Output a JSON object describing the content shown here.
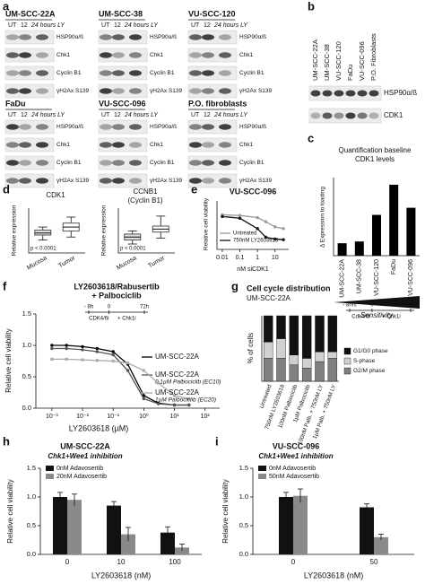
{
  "panel_a": {
    "letter": "a",
    "lanes": [
      "UT",
      "12",
      "24 hours LY"
    ],
    "markers": [
      "HSP90α/ß",
      "Chk1",
      "Cyclin B1",
      "γH2Ax S139"
    ],
    "blots": [
      "UM-SCC-22A",
      "UM-SCC-38",
      "VU-SCC-120",
      "FaDu",
      "VU-SCC-096",
      "P.O. fibroblasts"
    ]
  },
  "panel_b": {
    "letter": "b",
    "cell_lines": [
      "UM-SCC-22A",
      "UM-SCC-38",
      "VU-SCC-120",
      "FaDu",
      "VU-SCC-096",
      "P.O. Fibroblasts"
    ],
    "markers": [
      "HSP90α/ß",
      "CDK1"
    ]
  },
  "chart_data": [
    {
      "letter": "c",
      "type": "bar",
      "title": [
        "Quantification baseline",
        "CDK1 levels"
      ],
      "y_label": "Δ Expression to loading",
      "categories": [
        "UM-SCC-22A",
        "UM-SCC-38",
        "VU-SCC-120",
        "FaDu",
        "VU-SCC-096"
      ],
      "values": [
        0.35,
        0.4,
        1.15,
        2.0,
        1.35
      ],
      "color": "#000000",
      "ylim": [
        0,
        2.2
      ],
      "annotation": "Sensitivity"
    },
    {
      "letter": "d",
      "type": "box",
      "title": [
        "CDK1"
      ],
      "y_label": "Relative expression",
      "categories": [
        "Mucosa",
        "Tumor"
      ],
      "boxes": [
        {
          "min": -0.7,
          "q1": -0.2,
          "median": 0.0,
          "q3": 0.3,
          "max": 0.6
        },
        {
          "min": -0.4,
          "q1": 0.2,
          "median": 0.6,
          "q3": 1.0,
          "max": 1.6
        }
      ],
      "ylim": [
        -2,
        2.5
      ],
      "annotation": "p < 0.0001",
      "color": "#555555"
    },
    {
      "type": "box",
      "title": [
        "CCNB1",
        "(Cyclin B1)"
      ],
      "y_label": "Relative expression",
      "categories": [
        "Mucosa",
        "Tumor"
      ],
      "boxes": [
        {
          "min": -2.6,
          "q1": -2.2,
          "median": -1.9,
          "q3": -1.6,
          "max": -1.3
        },
        {
          "min": -2.0,
          "q1": -1.4,
          "median": -1.1,
          "q3": -0.8,
          "max": 0.2
        }
      ],
      "ylim": [
        -3.5,
        1
      ],
      "annotation": "p < 0.0001",
      "color": "#555555"
    },
    {
      "letter": "e",
      "type": "line",
      "title": [
        "VU-SCC-096"
      ],
      "y_label": "Relative cell viability",
      "x_label": "nM siCDK1",
      "x": [
        0.01,
        0.1,
        1,
        3,
        10,
        30
      ],
      "xscale": "log",
      "xlim": [
        0.005,
        60
      ],
      "xticks": [
        0.01,
        0.1,
        1,
        10
      ],
      "ylim": [
        0,
        1.4
      ],
      "series": [
        {
          "name": "Untreated",
          "color": "#999999",
          "values": [
            1.0,
            0.98,
            0.92,
            0.8,
            0.65,
            0.6
          ]
        },
        {
          "name": "750nM LY2603618",
          "color": "#111111",
          "values": [
            0.95,
            0.9,
            0.6,
            0.35,
            0.3,
            0.28
          ]
        }
      ]
    },
    {
      "letter": "f",
      "type": "line",
      "title": [
        "LY2603618/Rabusertib",
        "+ Palbociclib"
      ],
      "y_label": "Relative cell viability",
      "x_label": "LY2603618 (µM)",
      "x": [
        0.001,
        0.003,
        0.01,
        0.03,
        0.1,
        0.3,
        1,
        3,
        10,
        30
      ],
      "xscale": "log",
      "xlim": [
        0.0003,
        300
      ],
      "xticks": [
        {
          "value": 0.001,
          "label": "10⁻³"
        },
        {
          "value": 0.01,
          "label": "10⁻²"
        },
        {
          "value": 0.1,
          "label": "10⁻¹"
        },
        {
          "value": 1,
          "label": "10⁰"
        },
        {
          "value": 10,
          "label": "10¹"
        },
        {
          "value": 100,
          "label": "10²"
        }
      ],
      "ylim": [
        0,
        1.5
      ],
      "yticks": [
        {
          "value": 0,
          "label": "0.0"
        },
        {
          "value": 0.5,
          "label": "0.5"
        },
        {
          "value": 1,
          "label": "1.0"
        },
        {
          "value": 1.5,
          "label": "1.5"
        }
      ],
      "timeline": {
        "labels": [
          "- 8h",
          "0",
          "72h"
        ],
        "steps": [
          "CDK4/6i",
          "+ Chk1i"
        ]
      },
      "series": [
        {
          "name": "UM-SCC-22A",
          "color": "#000000",
          "values": [
            1.0,
            1.0,
            0.98,
            0.95,
            0.9,
            0.7,
            0.2,
            0.08,
            0.05,
            0.05
          ]
        },
        {
          "name": "UM-SCC-22A",
          "note": "0.1µM Palbociclib (EC10)",
          "color": "#555555",
          "values": [
            0.95,
            0.95,
            0.93,
            0.9,
            0.85,
            0.6,
            0.15,
            0.07,
            0.05,
            0.05
          ]
        },
        {
          "name": "UM-SCC-22A",
          "note": "1µM Palbociclib (EC20)",
          "color": "#aaaaaa",
          "values": [
            0.78,
            0.78,
            0.77,
            0.76,
            0.75,
            0.72,
            0.6,
            0.4,
            0.2,
            0.15
          ]
        }
      ]
    },
    {
      "letter": "g",
      "type": "stacked_bar",
      "title": [
        "Cell cycle distribution"
      ],
      "subtitle": "UM-SCC-22A",
      "y_label": "% of cells",
      "categories": [
        "Untreated",
        "750nM LY2603618",
        "100nM Palbociclib",
        "1µM Palbociclib",
        "100nM Palb. + 750nM LY",
        "1µM Palb. + 750nM LY"
      ],
      "ylim": [
        0,
        100
      ],
      "timeline": {
        "labels": [
          "- 8hrs",
          "0",
          "24hrs"
        ],
        "steps": [
          "Cdk4/6i",
          "+ Chk1i"
        ]
      },
      "series": [
        {
          "name": "G1/G0 phase",
          "color": "#111111",
          "values": [
            40,
            35,
            60,
            65,
            55,
            55
          ]
        },
        {
          "name": "S-phase",
          "color": "#d0d0d0",
          "values": [
            25,
            30,
            15,
            15,
            15,
            10
          ]
        },
        {
          "name": "G2/M phase",
          "color": "#808080",
          "values": [
            35,
            35,
            25,
            20,
            30,
            35
          ]
        }
      ]
    },
    {
      "letter": "h",
      "type": "grouped_bar",
      "title": [
        "UM-SCC-22A"
      ],
      "subtitle": "Chk1+Wee1 inhibition",
      "y_label": "Relative cell viability",
      "x_label": "LY2603618 (nM)",
      "categories": [
        "0",
        "10",
        "100"
      ],
      "ylim": [
        0,
        1.5
      ],
      "yticks": [
        {
          "value": 0,
          "label": "0.0"
        },
        {
          "value": 0.5,
          "label": "0.5"
        },
        {
          "value": 1,
          "label": "1.0"
        },
        {
          "value": 1.5,
          "label": "1.5"
        }
      ],
      "series": [
        {
          "name": "0nM Adavosertib",
          "color": "#111111",
          "values": [
            1.0,
            0.85,
            0.38
          ],
          "errors": [
            0.08,
            0.07,
            0.1
          ]
        },
        {
          "name": "20nM Adavosertib",
          "color": "#8a8a8a",
          "values": [
            0.95,
            0.35,
            0.12
          ],
          "errors": [
            0.1,
            0.12,
            0.06
          ]
        }
      ]
    },
    {
      "letter": "i",
      "type": "grouped_bar",
      "title": [
        "VU-SCC-096"
      ],
      "subtitle": "Chk1+Wee1 inhibition",
      "y_label": "Relative cell viability",
      "x_label": "LY2603618 (nM)",
      "categories": [
        "0",
        "50"
      ],
      "ylim": [
        0,
        1.5
      ],
      "yticks": [
        {
          "value": 0,
          "label": "0.0"
        },
        {
          "value": 0.5,
          "label": "0.5"
        },
        {
          "value": 1,
          "label": "1.0"
        },
        {
          "value": 1.5,
          "label": "1.5"
        }
      ],
      "series": [
        {
          "name": "0nM Adavosertib",
          "color": "#111111",
          "values": [
            1.0,
            0.82
          ],
          "errors": [
            0.08,
            0.06
          ]
        },
        {
          "name": "50nM Adavosertib",
          "color": "#8a8a8a",
          "values": [
            1.02,
            0.3
          ],
          "errors": [
            0.12,
            0.05
          ]
        }
      ]
    }
  ]
}
